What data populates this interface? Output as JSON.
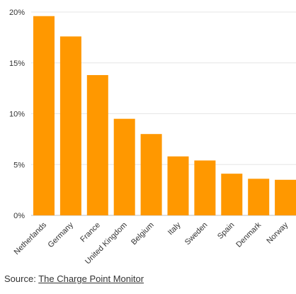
{
  "chart_data": {
    "type": "bar",
    "categories": [
      "Netherlands",
      "Germany",
      "France",
      "United Kingdom",
      "Belgium",
      "Italy",
      "Sweden",
      "Spain",
      "Denmark",
      "Norway"
    ],
    "values": [
      19.6,
      17.6,
      13.8,
      9.5,
      8.0,
      5.8,
      5.4,
      4.1,
      3.6,
      3.5
    ],
    "y_ticks": [
      "0%",
      "5%",
      "10%",
      "15%",
      "20%"
    ],
    "ylim": [
      0,
      20
    ],
    "grid": true,
    "title": "",
    "xlabel": "",
    "ylabel": "",
    "bar_color": "#ff9800",
    "grid_color": "#e6e6e6"
  },
  "source": {
    "prefix": "Source: ",
    "link_text": "The Charge Point Monitor"
  }
}
